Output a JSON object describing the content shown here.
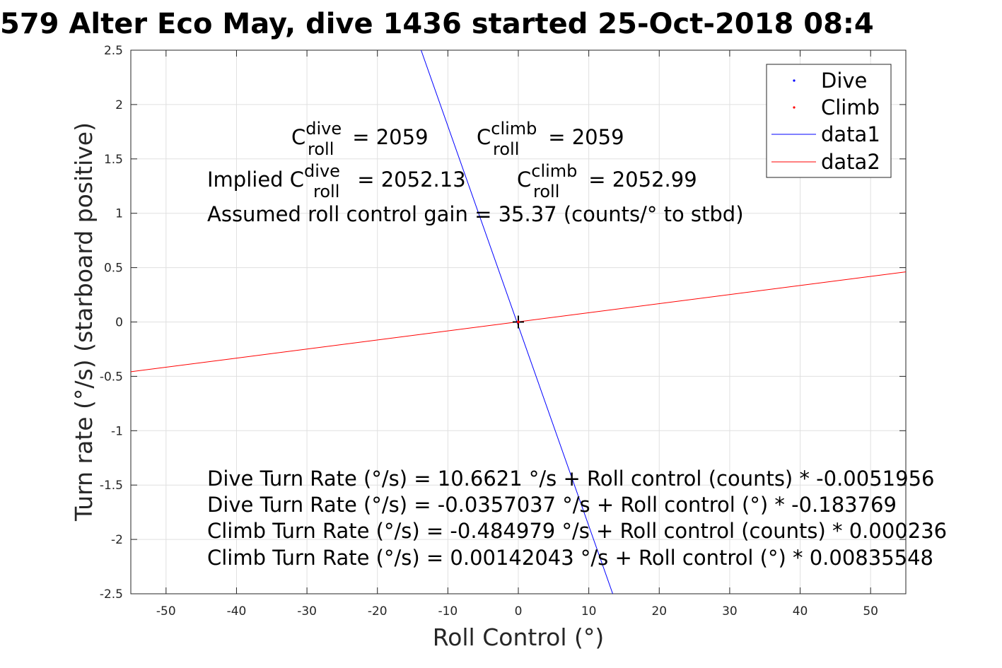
{
  "chart_data": {
    "type": "line",
    "title": "579 Alter Eco May, dive 1436 started 25-Oct-2018 08:4",
    "xlabel": "Roll Control (°)",
    "ylabel": "Turn rate (°/s) (starboard positive)",
    "xlim": [
      -55,
      55
    ],
    "ylim": [
      -2.5,
      2.5
    ],
    "xticks": [
      -50,
      -40,
      -30,
      -20,
      -10,
      0,
      10,
      20,
      30,
      40,
      50
    ],
    "xtick_labels": [
      "-50",
      "-40",
      "-30",
      "-20",
      "-10",
      "0",
      "10",
      "20",
      "30",
      "40",
      "50"
    ],
    "yticks": [
      -2.5,
      -2,
      -1.5,
      -1,
      -0.5,
      0,
      0.5,
      1,
      1.5,
      2,
      2.5
    ],
    "ytick_labels": [
      "-2.5",
      "-2",
      "-1.5",
      "-1",
      "-0.5",
      "0",
      "0.5",
      "1",
      "1.5",
      "2",
      "2.5"
    ],
    "grid": true,
    "legend_position": "top-right",
    "series": [
      {
        "name": "Dive",
        "kind": "points",
        "color": "#0000ff",
        "x": [
          0
        ],
        "y": [
          0
        ]
      },
      {
        "name": "Climb",
        "kind": "points",
        "color": "#ff0000",
        "x": [
          0
        ],
        "y": [
          0
        ]
      },
      {
        "name": "data1",
        "kind": "line",
        "color": "#0000ff",
        "x": [
          -13.8,
          13.4
        ],
        "y": [
          2.5,
          -2.5
        ]
      },
      {
        "name": "data2",
        "kind": "line",
        "color": "#ff0000",
        "x": [
          -55,
          55
        ],
        "y": [
          -0.458,
          0.461
        ]
      }
    ],
    "marker": {
      "x": 0,
      "y": 0,
      "symbol": "+",
      "color": "#000000"
    },
    "annotations": {
      "line1": [
        {
          "base": "C",
          "sup": "dive",
          "sub": "roll",
          "rest": " = 2059"
        },
        {
          "base": "C",
          "sup": "climb",
          "sub": "roll",
          "rest": " = 2059"
        }
      ],
      "line2": [
        {
          "prefix": "Implied ",
          "base": "C",
          "sup": "dive",
          "sub": "roll",
          "rest": " = 2052.13"
        },
        {
          "base": "C",
          "sup": "climb",
          "sub": "roll",
          "rest": " = 2052.99"
        }
      ],
      "gain": "Assumed roll control gain = 35.37 (counts/° to stbd)",
      "fits": [
        "Dive Turn Rate (°/s) = 10.6621 °/s + Roll control (counts) * -0.0051956",
        "Dive Turn Rate (°/s) = -0.0357037 °/s + Roll control (°) * -0.183769",
        "Climb Turn Rate (°/s) = -0.484979 °/s + Roll control (counts) * 0.000236",
        "Climb Turn Rate (°/s) = 0.00142043 °/s + Roll control (°) * 0.00835548"
      ]
    }
  }
}
